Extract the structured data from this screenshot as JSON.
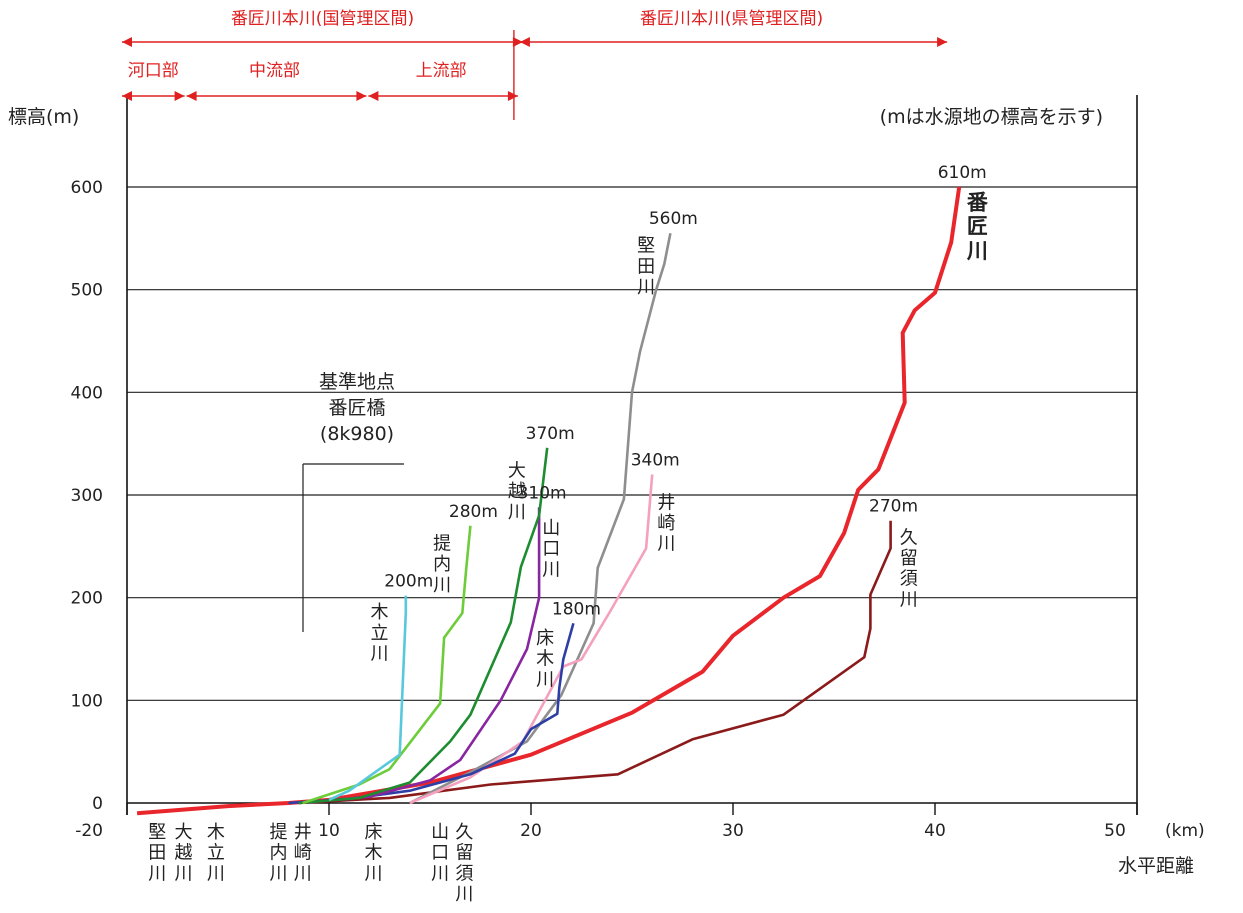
{
  "chart_data": {
    "type": "line",
    "ylabel": "標高(m)",
    "xlabel": "水平距離",
    "x_unit": "(km)",
    "note": "(mは水源地の標高を示す)",
    "xlim": [
      0,
      50
    ],
    "ylim": [
      -20,
      640
    ],
    "x_ticks": [
      10,
      20,
      30,
      40,
      50
    ],
    "y_ticks": [
      0,
      100,
      200,
      300,
      400,
      500,
      600
    ],
    "y_tick_extra": "-20",
    "grid": true,
    "sections": {
      "top": [
        {
          "label": "番匠川本川(国管理区間)",
          "from": 0,
          "to": 19.5
        },
        {
          "label": "番匠川本川(県管理区間)",
          "from": 19.5,
          "to": 40.5
        }
      ],
      "bottom": [
        {
          "label": "河口部",
          "from": 0,
          "to": 3
        },
        {
          "label": "中流部",
          "from": 3,
          "to": 12
        },
        {
          "label": "上流部",
          "from": 12,
          "to": 19.5
        }
      ]
    },
    "reference_point": {
      "lines": [
        "基準地点",
        "番匠橋",
        "(8k980)"
      ],
      "x": 9
    },
    "series": [
      {
        "name": "番匠川",
        "source_label": "610m",
        "color": "#e8262b",
        "bold": true,
        "points": [
          [
            0.5,
            -10
          ],
          [
            5,
            -3
          ],
          [
            8,
            0
          ],
          [
            10,
            3
          ],
          [
            15,
            20
          ],
          [
            20,
            47
          ],
          [
            25,
            88
          ],
          [
            28.5,
            128
          ],
          [
            30,
            163
          ],
          [
            32.5,
            200
          ],
          [
            34.3,
            221
          ],
          [
            35.5,
            263
          ],
          [
            36.2,
            305
          ],
          [
            37.2,
            325
          ],
          [
            38.5,
            390
          ],
          [
            38.4,
            458
          ],
          [
            39,
            480
          ],
          [
            40,
            497
          ],
          [
            40.8,
            546
          ],
          [
            41.2,
            600
          ]
        ]
      },
      {
        "name": "久留須川",
        "source_label": "270m",
        "color": "#8b1a1a",
        "points": [
          [
            8.5,
            0
          ],
          [
            13,
            5
          ],
          [
            18,
            18
          ],
          [
            24.3,
            28
          ],
          [
            28,
            62
          ],
          [
            32.5,
            86
          ],
          [
            36.5,
            142
          ],
          [
            36.8,
            170
          ],
          [
            36.8,
            203
          ],
          [
            37.8,
            248
          ],
          [
            37.8,
            275
          ]
        ]
      },
      {
        "name": "堅田川",
        "source_label": "560m",
        "color": "#8e8e8e",
        "points": [
          [
            14,
            0
          ],
          [
            17,
            30
          ],
          [
            19.8,
            60
          ],
          [
            21.5,
            105
          ],
          [
            23.1,
            175
          ],
          [
            23.3,
            229
          ],
          [
            24.6,
            296
          ],
          [
            25,
            400
          ],
          [
            25.4,
            440
          ],
          [
            26.2,
            500
          ],
          [
            26.6,
            525
          ],
          [
            26.9,
            555
          ]
        ]
      },
      {
        "name": "井崎川",
        "source_label": "340m",
        "color": "#f4a0be",
        "points": [
          [
            14,
            0
          ],
          [
            17,
            25
          ],
          [
            19.6,
            60
          ],
          [
            21.6,
            133
          ],
          [
            22.5,
            140
          ],
          [
            23.9,
            186
          ],
          [
            25.7,
            248
          ],
          [
            26,
            320
          ]
        ]
      },
      {
        "name": "床木川",
        "source_label": "180m",
        "color": "#2e3ea7",
        "points": [
          [
            8,
            0
          ],
          [
            11,
            4
          ],
          [
            14,
            12
          ],
          [
            17,
            28
          ],
          [
            19.2,
            48
          ],
          [
            20,
            72
          ],
          [
            21.3,
            87
          ],
          [
            21.4,
            112
          ],
          [
            21.6,
            140
          ],
          [
            22.1,
            175
          ]
        ]
      },
      {
        "name": "山口川",
        "source_label": "310m",
        "color": "#8826a0",
        "points": [
          [
            8.5,
            0
          ],
          [
            12,
            6
          ],
          [
            15,
            22
          ],
          [
            16.5,
            42
          ],
          [
            18.5,
            100
          ],
          [
            19.8,
            150
          ],
          [
            20.4,
            200
          ],
          [
            20.4,
            288
          ]
        ]
      },
      {
        "name": "大越川",
        "source_label": "370m",
        "color": "#1e8c30",
        "points": [
          [
            8.5,
            0
          ],
          [
            11.5,
            5
          ],
          [
            14,
            20
          ],
          [
            16,
            60
          ],
          [
            17,
            86
          ],
          [
            19,
            176
          ],
          [
            19.5,
            230
          ],
          [
            20.4,
            280
          ],
          [
            20.8,
            346
          ]
        ]
      },
      {
        "name": "提内川",
        "source_label": "280m",
        "color": "#6ccc3a",
        "points": [
          [
            8.7,
            0
          ],
          [
            11.5,
            18
          ],
          [
            13,
            33
          ],
          [
            15.5,
            97
          ],
          [
            15.7,
            161
          ],
          [
            16.6,
            185
          ],
          [
            16.8,
            230
          ],
          [
            17,
            270
          ]
        ]
      },
      {
        "name": "木立川",
        "source_label": "200m",
        "color": "#58c8dc",
        "points": [
          [
            10,
            3
          ],
          [
            11,
            12
          ],
          [
            13.5,
            47
          ],
          [
            13.8,
            185
          ],
          [
            13.8,
            202
          ]
        ]
      }
    ],
    "series_label_text": [
      {
        "name": "堅田川",
        "label": "堅田川",
        "x": 25.7,
        "y": 537
      },
      {
        "name": "番匠川",
        "label": "番匠川",
        "x": 42.1,
        "y": 578,
        "bold": true
      },
      {
        "name": "大越川",
        "label": "大越川",
        "x": 19.3,
        "y": 318
      },
      {
        "name": "山口川",
        "label": "山口川",
        "x": 21.0,
        "y": 262
      },
      {
        "name": "井崎川",
        "label": "井崎川",
        "x": 26.7,
        "y": 287
      },
      {
        "name": "提内川",
        "label": "提内川",
        "x": 15.6,
        "y": 247
      },
      {
        "name": "久留須川",
        "label": "久留須川",
        "x": 38.7,
        "y": 253
      },
      {
        "name": "床木川",
        "label": "床木川",
        "x": 20.7,
        "y": 155
      },
      {
        "name": "木立川",
        "label": "木立川",
        "x": 12.5,
        "y": 180
      }
    ],
    "confluence_labels": [
      {
        "label": "堅田川",
        "x": 1.5
      },
      {
        "label": "大越川",
        "x": 2.8
      },
      {
        "label": "木立川",
        "x": 4.4
      },
      {
        "label": "提内川",
        "x": 7.5
      },
      {
        "label": "井崎川",
        "x": 8.7
      },
      {
        "label": "床木川",
        "x": 12.2
      },
      {
        "label": "山口川",
        "x": 15.5
      },
      {
        "label": "久留須川",
        "x": 16.7
      }
    ]
  }
}
